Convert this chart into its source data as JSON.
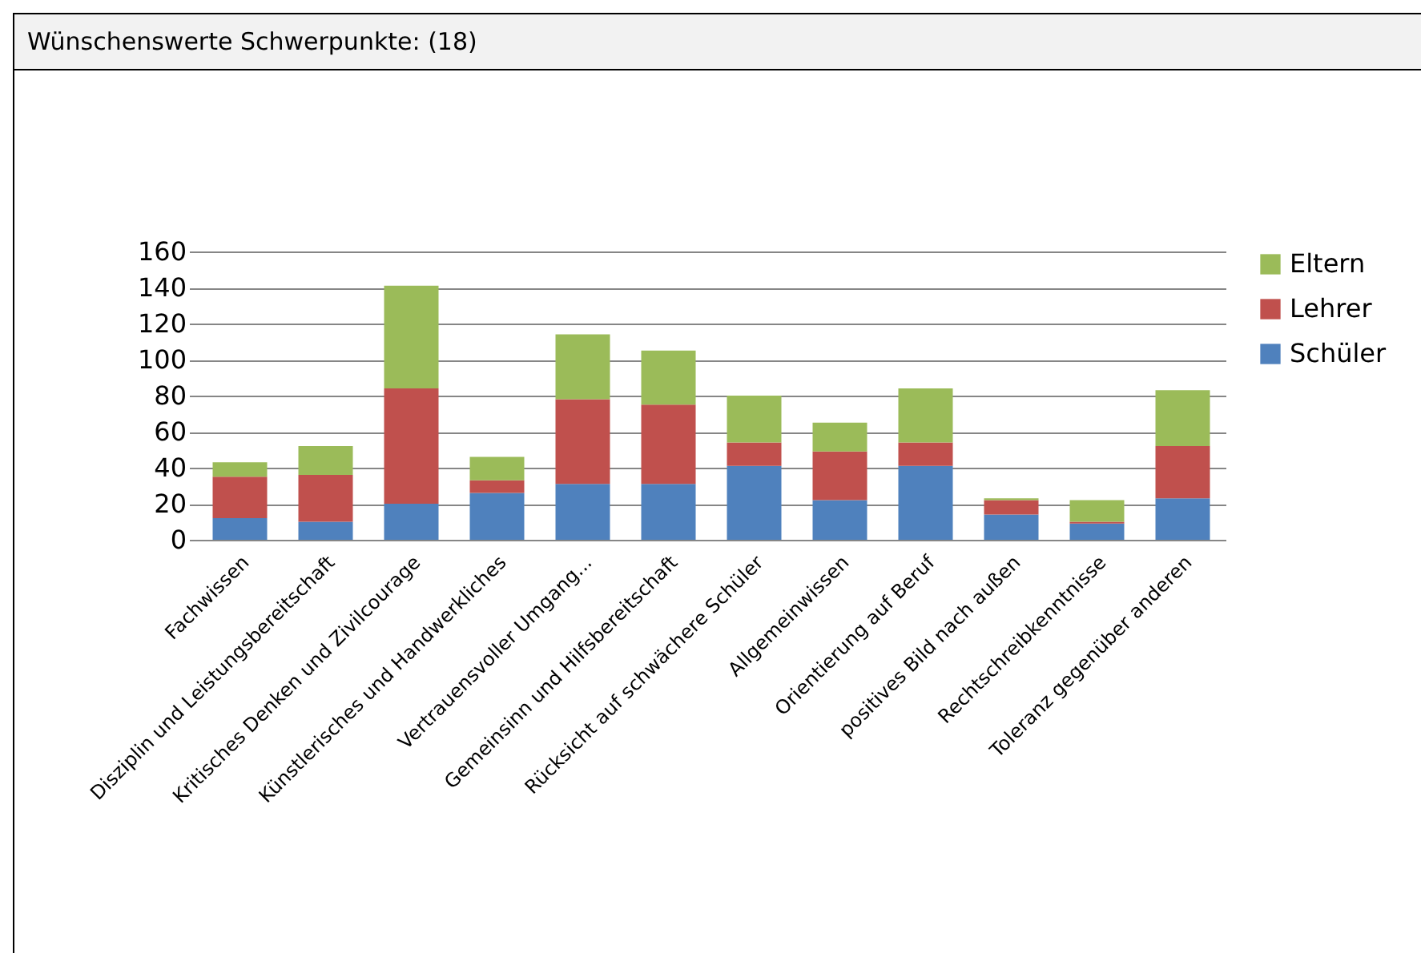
{
  "chart_data": {
    "type": "bar",
    "title": "Wünschenswerte Schwerpunkte: (18)",
    "stacked": true,
    "legend": "right",
    "grid": "y",
    "categories": [
      "Fachwissen",
      "Disziplin und Leistungsbereitschaft",
      "Kritisches Denken und Zivilcourage",
      "Künstlerisches und Handwerkliches",
      "Vertrauensvoller Umgang...",
      "Gemeinsinn und Hilfsbereitschaft",
      "Rücksicht auf schwächere Schüler",
      "Allgemeinwissen",
      "Orientierung auf Beruf",
      "positives Bild  nach außen",
      "Rechtschreibkenntnisse",
      "Toleranz gegenüber anderen"
    ],
    "ylim": [
      0,
      160
    ],
    "yticks": [
      0,
      20,
      40,
      60,
      80,
      100,
      120,
      140,
      160
    ],
    "series": [
      {
        "name": "Schüler",
        "color": "#4f81bd",
        "values": [
          12,
          10,
          20,
          26,
          31,
          31,
          41,
          22,
          41,
          14,
          9,
          23
        ]
      },
      {
        "name": "Lehrer",
        "color": "#c0504d",
        "values": [
          23,
          26,
          64,
          7,
          47,
          44,
          13,
          27,
          13,
          8,
          1,
          29
        ]
      },
      {
        "name": "Eltern",
        "color": "#9bbb59",
        "values": [
          8,
          16,
          57,
          13,
          36,
          30,
          26,
          16,
          30,
          1,
          12,
          31
        ]
      }
    ]
  }
}
